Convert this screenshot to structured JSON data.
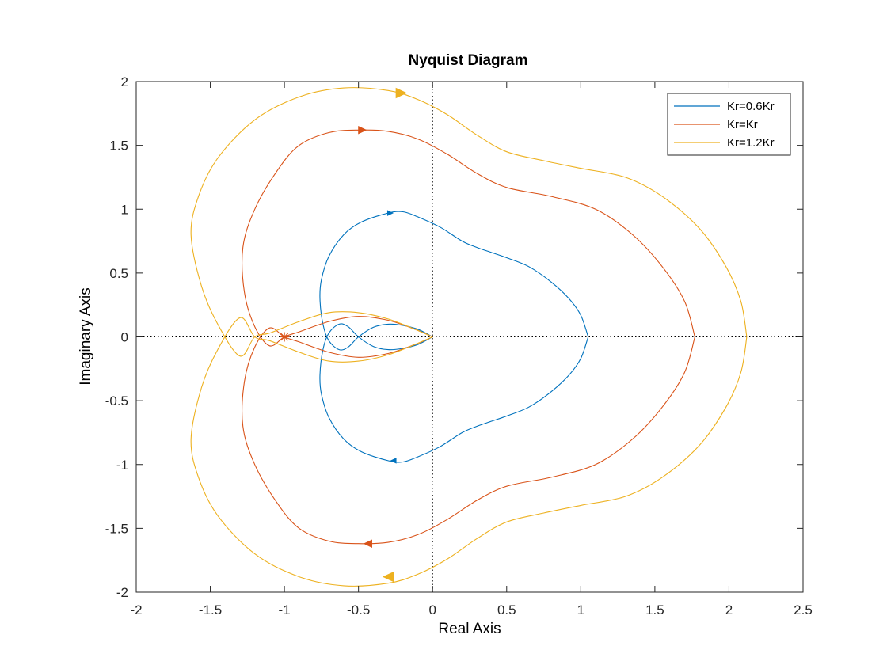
{
  "chart_data": {
    "type": "line",
    "title": "Nyquist Diagram",
    "xlabel": "Real Axis",
    "ylabel": "Imaginary Axis",
    "xlim": [
      -2,
      2.5
    ],
    "ylim": [
      -2,
      2
    ],
    "xticks": [
      -2,
      -1.5,
      -1,
      -0.5,
      0,
      0.5,
      1,
      1.5,
      2,
      2.5
    ],
    "yticks": [
      -2,
      -1.5,
      -1,
      -0.5,
      0,
      0.5,
      1,
      1.5,
      2
    ],
    "xtick_labels": [
      "-2",
      "-1.5",
      "-1",
      "-0.5",
      "0",
      "0.5",
      "1",
      "1.5",
      "2",
      "2.5"
    ],
    "ytick_labels": [
      "-2",
      "-1.5",
      "-1",
      "-0.5",
      "0",
      "0.5",
      "1",
      "1.5",
      "2"
    ],
    "grid": false,
    "zero_lines": "dotted",
    "legend_position": "top-right",
    "critical_point": {
      "x": -1,
      "y": 0,
      "marker": "+",
      "color": "#d95319"
    },
    "series": [
      {
        "name": "Kr=0.6Kr",
        "color": "#0072bd",
        "arrow_size": 5,
        "upper_branch": [
          [
            0,
            0
          ],
          [
            -0.1,
            0.06
          ],
          [
            -0.2,
            0.09
          ],
          [
            -0.3,
            0.1
          ],
          [
            -0.4,
            0.075
          ],
          [
            -0.5,
            0
          ],
          [
            -0.57,
            -0.08
          ],
          [
            -0.63,
            -0.1
          ],
          [
            -0.7,
            -0.03
          ],
          [
            -0.74,
            0.1
          ],
          [
            -0.76,
            0.3
          ],
          [
            -0.75,
            0.45
          ],
          [
            -0.7,
            0.63
          ],
          [
            -0.6,
            0.8
          ],
          [
            -0.48,
            0.9
          ],
          [
            -0.3,
            0.97
          ],
          [
            -0.2,
            0.98
          ],
          [
            -0.1,
            0.94
          ],
          [
            0.05,
            0.86
          ],
          [
            0.2,
            0.75
          ],
          [
            0.3,
            0.7
          ],
          [
            0.4,
            0.66
          ],
          [
            0.5,
            0.62
          ],
          [
            0.65,
            0.55
          ],
          [
            0.8,
            0.43
          ],
          [
            0.92,
            0.3
          ],
          [
            1.0,
            0.17
          ],
          [
            1.05,
            0
          ]
        ],
        "arrows": [
          [
            -0.29,
            0.97,
            1
          ],
          [
            -0.26,
            -0.97,
            -1
          ]
        ]
      },
      {
        "name": "Kr=Kr",
        "color": "#d95319",
        "arrow_size": 7,
        "upper_branch": [
          [
            0,
            0
          ],
          [
            -0.12,
            0.06
          ],
          [
            -0.3,
            0.13
          ],
          [
            -0.5,
            0.16
          ],
          [
            -0.7,
            0.12
          ],
          [
            -0.9,
            0.04
          ],
          [
            -1.0,
            0
          ],
          [
            -1.1,
            -0.07
          ],
          [
            -1.2,
            0.08
          ],
          [
            -1.27,
            0.35
          ],
          [
            -1.28,
            0.7
          ],
          [
            -1.2,
            1.0
          ],
          [
            -1.05,
            1.3
          ],
          [
            -0.9,
            1.5
          ],
          [
            -0.7,
            1.6
          ],
          [
            -0.5,
            1.62
          ],
          [
            -0.3,
            1.61
          ],
          [
            -0.1,
            1.55
          ],
          [
            0.1,
            1.43
          ],
          [
            0.3,
            1.28
          ],
          [
            0.5,
            1.17
          ],
          [
            0.8,
            1.1
          ],
          [
            1.1,
            1.0
          ],
          [
            1.35,
            0.8
          ],
          [
            1.55,
            0.55
          ],
          [
            1.7,
            0.28
          ],
          [
            1.77,
            0
          ]
        ],
        "arrows": [
          [
            -0.48,
            1.62,
            1
          ],
          [
            -0.43,
            -1.62,
            -1
          ]
        ]
      },
      {
        "name": "Kr=1.2Kr",
        "color": "#edb120",
        "arrow_size": 9,
        "upper_branch": [
          [
            0,
            0
          ],
          [
            -0.12,
            0.06
          ],
          [
            -0.3,
            0.14
          ],
          [
            -0.5,
            0.19
          ],
          [
            -0.7,
            0.19
          ],
          [
            -0.9,
            0.12
          ],
          [
            -1.1,
            0.03
          ],
          [
            -1.2,
            0
          ],
          [
            -1.3,
            -0.15
          ],
          [
            -1.45,
            0.1
          ],
          [
            -1.56,
            0.4
          ],
          [
            -1.63,
            0.8
          ],
          [
            -1.58,
            1.1
          ],
          [
            -1.45,
            1.4
          ],
          [
            -1.2,
            1.7
          ],
          [
            -0.9,
            1.88
          ],
          [
            -0.6,
            1.95
          ],
          [
            -0.3,
            1.93
          ],
          [
            -0.1,
            1.86
          ],
          [
            0.1,
            1.74
          ],
          [
            0.3,
            1.58
          ],
          [
            0.5,
            1.45
          ],
          [
            0.75,
            1.38
          ],
          [
            1.0,
            1.32
          ],
          [
            1.3,
            1.25
          ],
          [
            1.55,
            1.1
          ],
          [
            1.8,
            0.85
          ],
          [
            1.98,
            0.55
          ],
          [
            2.08,
            0.28
          ],
          [
            2.12,
            0
          ]
        ],
        "arrows": [
          [
            -0.22,
            1.91,
            1
          ],
          [
            -0.29,
            -1.88,
            -1
          ]
        ]
      }
    ]
  }
}
